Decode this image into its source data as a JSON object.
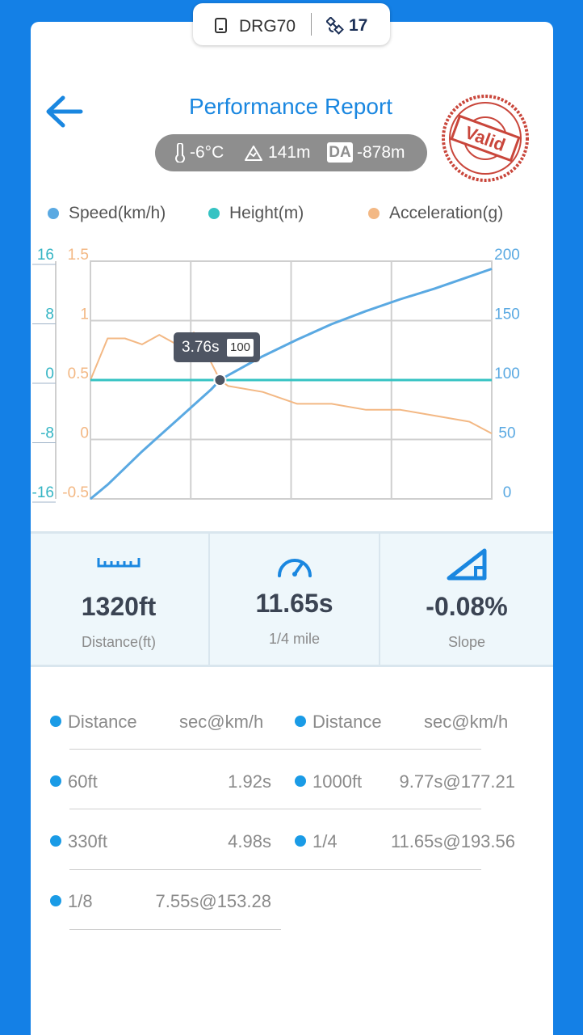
{
  "device": {
    "name": "DRG70",
    "satellites": "17"
  },
  "header": {
    "title": "Performance Report",
    "stamp": "Valid"
  },
  "conditions": {
    "temperature": "-6°C",
    "altitude": "141m",
    "da_label": "DA",
    "density_altitude": "-878m"
  },
  "legend": [
    {
      "label": "Speed(km/h)",
      "color": "#5aa9e2"
    },
    {
      "label": "Height(m)",
      "color": "#35c3c3"
    },
    {
      "label": "Acceleration(g)",
      "color": "#f3b884"
    }
  ],
  "chart_data": {
    "type": "line",
    "x": [
      0,
      0.5,
      1,
      1.5,
      2,
      2.5,
      3,
      3.5,
      3.76,
      4,
      5,
      6,
      7,
      8,
      9,
      10,
      11,
      11.65
    ],
    "series": [
      {
        "name": "Speed(km/h)",
        "axis": "right",
        "color": "#5aa9e2",
        "values": [
          0,
          12,
          26,
          40,
          53,
          66,
          79,
          92,
          100,
          104,
          120,
          134,
          147,
          158,
          168,
          177,
          187,
          193.56
        ]
      },
      {
        "name": "Height(m)",
        "axis": "left-outer",
        "color": "#35c3c3",
        "values": [
          0,
          0,
          0,
          0,
          0,
          0,
          0,
          0,
          0,
          0,
          0,
          0,
          0,
          0,
          0,
          0,
          0,
          0
        ]
      },
      {
        "name": "Acceleration(g)",
        "axis": "left-inner",
        "color": "#f3b884",
        "values": [
          0.5,
          0.85,
          0.85,
          0.8,
          0.88,
          0.8,
          0.9,
          0.65,
          0.5,
          0.45,
          0.4,
          0.3,
          0.3,
          0.25,
          0.25,
          0.2,
          0.15,
          0.05
        ]
      }
    ],
    "height_axis": {
      "ticks": [
        "16",
        "8",
        "0",
        "-8",
        "-16"
      ],
      "range": [
        -16,
        16
      ]
    },
    "accel_axis": {
      "ticks": [
        "1.5",
        "1",
        "0.5",
        "0",
        "-0.5"
      ],
      "range": [
        -0.5,
        1.5
      ]
    },
    "speed_axis": {
      "ticks": [
        "200",
        "150",
        "100",
        "50",
        "0"
      ],
      "range": [
        0,
        200
      ]
    },
    "tooltip": {
      "time": "3.76s",
      "speed": "100",
      "x": 3.76
    }
  },
  "stats": [
    {
      "value": "1320ft",
      "label": "Distance(ft)"
    },
    {
      "value": "11.65s",
      "label": "1/4 mile"
    },
    {
      "value": "-0.08%",
      "label": "Slope"
    }
  ],
  "table": {
    "headers": [
      "Distance",
      "sec@km/h",
      "Distance",
      "sec@km/h"
    ],
    "left": [
      {
        "distance": "60ft",
        "result": "1.92s"
      },
      {
        "distance": "330ft",
        "result": "4.98s"
      },
      {
        "distance": "1/8",
        "result": "7.55s@153.28"
      }
    ],
    "right": [
      {
        "distance": "1000ft",
        "result": "9.77s@177.21"
      },
      {
        "distance": "1/4",
        "result": "11.65s@193.56"
      }
    ]
  }
}
